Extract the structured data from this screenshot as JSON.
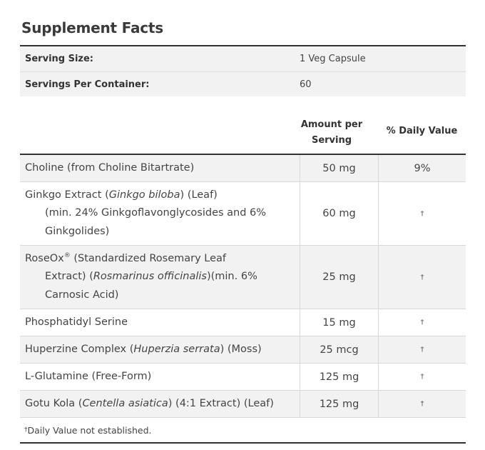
{
  "title": "Supplement Facts",
  "serving": {
    "size_label": "Serving Size:",
    "size_value": "1 Veg Capsule",
    "per_container_label": "Servings Per Container:",
    "per_container_value": "60"
  },
  "columns": {
    "amount_line1": "Amount per",
    "amount_line2": "Serving",
    "daily_value": "% Daily Value"
  },
  "ingredients": [
    {
      "name": "Choline (from Choline Bitartrate)",
      "amount": "50 mg",
      "dv": "9%"
    },
    {
      "name_pre": "Ginkgo Extract (",
      "name_italic": "Ginkgo biloba",
      "name_post": ") (Leaf)",
      "line2": "(min. 24% Ginkgoflavonglycosides and 6%",
      "line3": "Ginkgolides)",
      "amount": "60 mg",
      "dv": "†"
    },
    {
      "name_pre": "RoseOx",
      "name_sup": "®",
      "name_post": " (Standardized Rosemary Leaf",
      "line2_pre": "Extract) (",
      "line2_italic": "Rosmarinus officinalis",
      "line2_post": ")(min. 6%",
      "line3": "Carnosic Acid)",
      "amount": "25 mg",
      "dv": "†"
    },
    {
      "name": "Phosphatidyl Serine",
      "amount": "15 mg",
      "dv": "†"
    },
    {
      "name_pre": "Huperzine Complex (",
      "name_italic": "Huperzia serrata",
      "name_post": ") (Moss)",
      "amount": "25 mcg",
      "dv": "†"
    },
    {
      "name": "L-Glutamine (Free-Form)",
      "amount": "125 mg",
      "dv": "†"
    },
    {
      "name_pre": "Gotu Kola (",
      "name_italic": "Centella asiatica",
      "name_post": ") (4:1 Extract) (Leaf)",
      "amount": "125 mg",
      "dv": "†"
    }
  ],
  "footnote": {
    "dagger": "†",
    "text": "Daily Value not established."
  }
}
